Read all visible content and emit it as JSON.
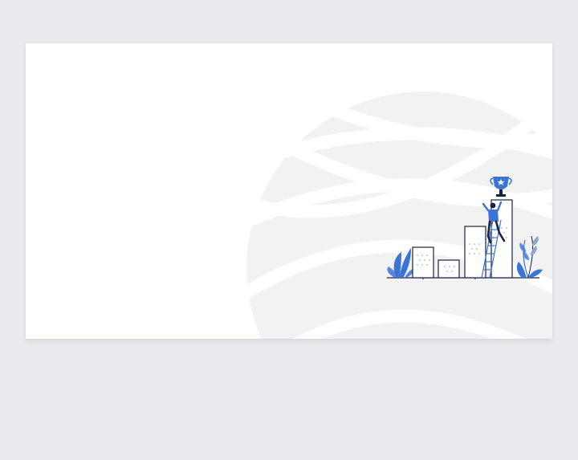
{
  "page": {
    "background": "#e9eaee"
  },
  "slide": {
    "background": "#ffffff",
    "watermark": {
      "icon": "globe-grid-icon",
      "color": "#f2f2f2"
    },
    "illustration": {
      "icon": "career-growth-trophy-icon",
      "accent": "#3b74d6",
      "outline": "#1b2340"
    }
  }
}
